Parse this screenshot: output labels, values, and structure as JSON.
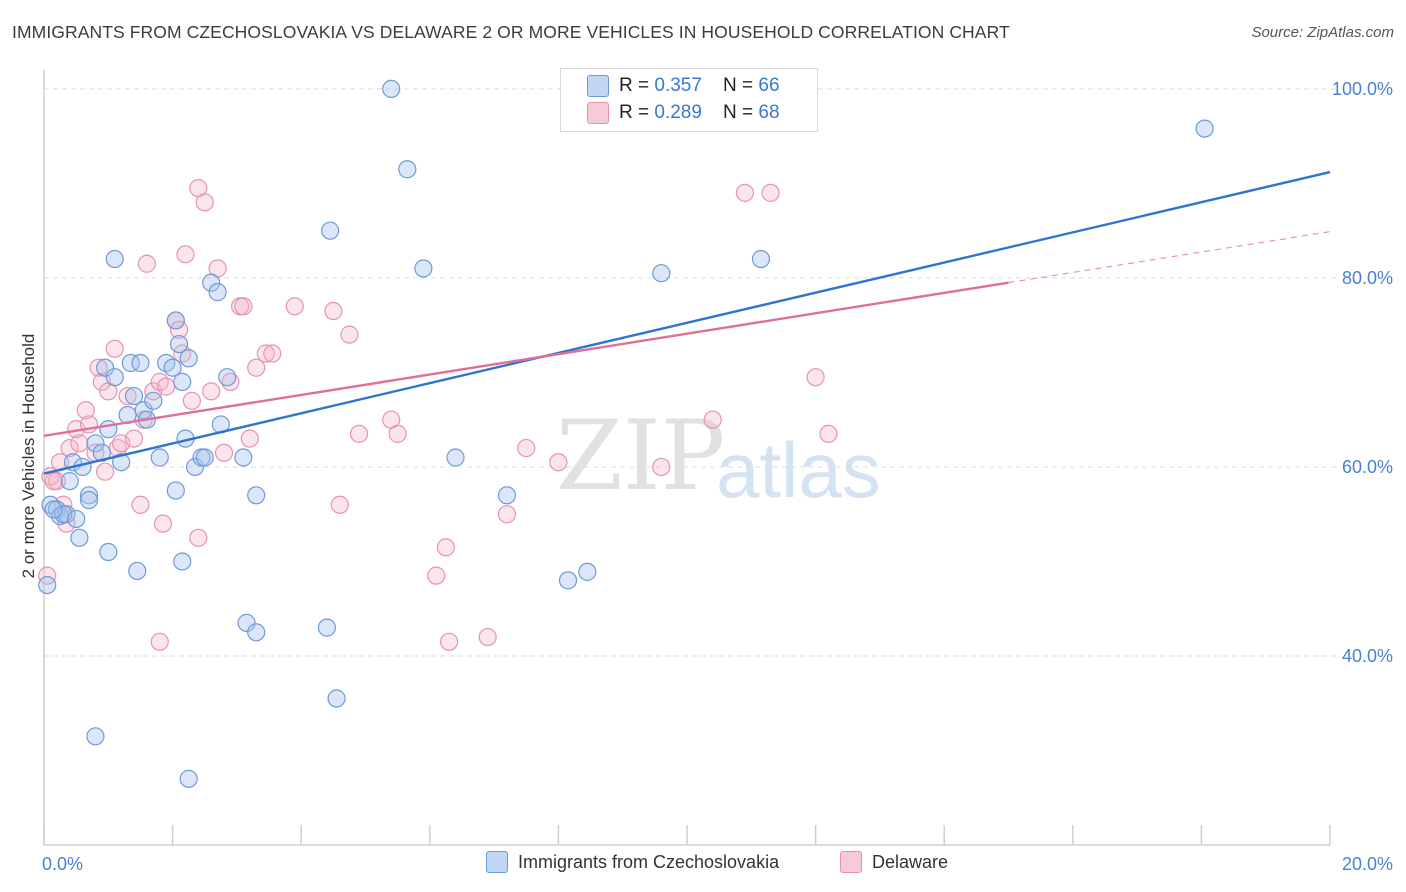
{
  "title": "IMMIGRANTS FROM CZECHOSLOVAKIA VS DELAWARE 2 OR MORE VEHICLES IN HOUSEHOLD CORRELATION CHART",
  "source": "Source: ZipAtlas.com",
  "watermark": {
    "zip": "ZIP",
    "atlas": "atlas"
  },
  "legend_top": [
    {
      "r_label": "R = ",
      "r_value": "0.357",
      "n_label": "N = ",
      "n_value": "66",
      "color": "#a6c4ee"
    },
    {
      "r_label": "R = ",
      "r_value": "0.289",
      "n_label": "N = ",
      "n_value": "68",
      "color": "#f4b4c8"
    }
  ],
  "legend_bottom": [
    {
      "label": "Immigrants from Czechoslovakia",
      "color": "#a6c4ee"
    },
    {
      "label": "Delaware",
      "color": "#f4b4c8"
    }
  ],
  "chart_data": {
    "type": "scatter",
    "title": "IMMIGRANTS FROM CZECHOSLOVAKIA VS DELAWARE 2 OR MORE VEHICLES IN HOUSEHOLD CORRELATION CHART",
    "xlabel": "",
    "ylabel": "2 or more Vehicles in Household",
    "xlim": [
      0,
      20
    ],
    "ylim": [
      20,
      102
    ],
    "x_ticks": [
      "0.0%",
      "20.0%"
    ],
    "y_ticks": [
      {
        "value": 40,
        "label": "40.0%"
      },
      {
        "value": 60,
        "label": "60.0%"
      },
      {
        "value": 80,
        "label": "80.0%"
      },
      {
        "value": 100,
        "label": "100.0%"
      }
    ],
    "grid": true,
    "legend_position": "top-center",
    "series": [
      {
        "name": "Immigrants from Czechoslovakia",
        "color": "#6f9ad6",
        "trend": {
          "x": [
            0,
            20
          ],
          "y": [
            59.3,
            91.2
          ],
          "color": "#2f74d0"
        },
        "points": [
          [
            0.05,
            47.5
          ],
          [
            0.1,
            56.0
          ],
          [
            0.2,
            55.5
          ],
          [
            0.25,
            54.8
          ],
          [
            0.35,
            55.0
          ],
          [
            0.55,
            52.5
          ],
          [
            0.4,
            58.5
          ],
          [
            0.45,
            60.5
          ],
          [
            0.6,
            60.0
          ],
          [
            0.7,
            57.0
          ],
          [
            0.8,
            62.5
          ],
          [
            0.9,
            61.5
          ],
          [
            0.95,
            70.5
          ],
          [
            1.0,
            64.0
          ],
          [
            1.1,
            69.5
          ],
          [
            1.2,
            60.5
          ],
          [
            1.3,
            65.5
          ],
          [
            1.35,
            71.0
          ],
          [
            1.4,
            67.5
          ],
          [
            1.5,
            71.0
          ],
          [
            1.55,
            66.0
          ],
          [
            1.6,
            65.0
          ],
          [
            1.7,
            67.0
          ],
          [
            1.8,
            61.0
          ],
          [
            1.9,
            71.0
          ],
          [
            2.0,
            70.5
          ],
          [
            2.05,
            75.5
          ],
          [
            2.1,
            73.0
          ],
          [
            2.15,
            69.0
          ],
          [
            2.2,
            63.0
          ],
          [
            2.25,
            71.5
          ],
          [
            2.35,
            60.0
          ],
          [
            2.45,
            61.0
          ],
          [
            2.5,
            61.0
          ],
          [
            2.6,
            79.5
          ],
          [
            2.7,
            78.5
          ],
          [
            2.75,
            64.5
          ],
          [
            2.85,
            69.5
          ],
          [
            3.1,
            61.0
          ],
          [
            3.3,
            57.0
          ],
          [
            0.7,
            56.5
          ],
          [
            1.0,
            51.0
          ],
          [
            1.45,
            49.0
          ],
          [
            2.15,
            50.0
          ],
          [
            2.05,
            57.5
          ],
          [
            1.1,
            82.0
          ],
          [
            3.15,
            43.5
          ],
          [
            3.3,
            42.5
          ],
          [
            4.4,
            43.0
          ],
          [
            4.55,
            35.5
          ],
          [
            4.45,
            85.0
          ],
          [
            5.4,
            100.0
          ],
          [
            5.65,
            91.5
          ],
          [
            5.9,
            81.0
          ],
          [
            6.4,
            61.0
          ],
          [
            7.2,
            57.0
          ],
          [
            8.15,
            48.0
          ],
          [
            8.45,
            48.9
          ],
          [
            9.6,
            80.5
          ],
          [
            11.15,
            82.0
          ],
          [
            18.05,
            95.8
          ],
          [
            0.8,
            31.5
          ],
          [
            2.25,
            27.0
          ],
          [
            0.3,
            55.0
          ],
          [
            0.15,
            55.5
          ],
          [
            0.5,
            54.5
          ]
        ]
      },
      {
        "name": "Delaware",
        "color": "#e793b0",
        "trend": {
          "x": [
            0,
            15
          ],
          "y": [
            63.3,
            79.5
          ],
          "color": "#e06f98"
        },
        "trend_dashed": {
          "x": [
            15,
            20
          ],
          "y": [
            79.5,
            84.9
          ]
        },
        "points": [
          [
            0.05,
            48.5
          ],
          [
            0.1,
            59.0
          ],
          [
            0.2,
            58.5
          ],
          [
            0.25,
            60.5
          ],
          [
            0.35,
            54.0
          ],
          [
            0.4,
            62.0
          ],
          [
            0.5,
            64.0
          ],
          [
            0.55,
            62.5
          ],
          [
            0.65,
            66.0
          ],
          [
            0.7,
            64.5
          ],
          [
            0.8,
            61.5
          ],
          [
            0.85,
            70.5
          ],
          [
            0.9,
            69.0
          ],
          [
            0.95,
            59.5
          ],
          [
            1.0,
            68.0
          ],
          [
            1.1,
            72.5
          ],
          [
            1.15,
            62.0
          ],
          [
            1.2,
            62.5
          ],
          [
            1.3,
            67.5
          ],
          [
            1.4,
            63.0
          ],
          [
            1.5,
            56.0
          ],
          [
            1.55,
            65.0
          ],
          [
            1.6,
            81.5
          ],
          [
            1.7,
            68.0
          ],
          [
            1.8,
            69.0
          ],
          [
            1.9,
            68.5
          ],
          [
            1.85,
            54.0
          ],
          [
            2.05,
            75.5
          ],
          [
            2.1,
            74.5
          ],
          [
            2.15,
            72.0
          ],
          [
            2.2,
            82.5
          ],
          [
            2.3,
            67.0
          ],
          [
            2.4,
            89.5
          ],
          [
            2.5,
            88.0
          ],
          [
            2.6,
            68.0
          ],
          [
            2.7,
            81.0
          ],
          [
            2.8,
            61.5
          ],
          [
            2.9,
            69.0
          ],
          [
            3.05,
            77.0
          ],
          [
            3.1,
            77.0
          ],
          [
            3.2,
            63.0
          ],
          [
            3.3,
            70.5
          ],
          [
            3.45,
            72.0
          ],
          [
            3.55,
            72.0
          ],
          [
            3.9,
            77.0
          ],
          [
            4.5,
            76.5
          ],
          [
            4.6,
            56.0
          ],
          [
            4.75,
            74.0
          ],
          [
            4.9,
            63.5
          ],
          [
            5.4,
            65.0
          ],
          [
            5.5,
            63.5
          ],
          [
            6.1,
            48.5
          ],
          [
            6.25,
            51.5
          ],
          [
            6.3,
            41.5
          ],
          [
            6.9,
            42.0
          ],
          [
            7.2,
            55.0
          ],
          [
            7.5,
            62.0
          ],
          [
            8.0,
            60.5
          ],
          [
            9.6,
            60.0
          ],
          [
            10.4,
            65.0
          ],
          [
            10.9,
            89.0
          ],
          [
            11.3,
            89.0
          ],
          [
            12.0,
            69.5
          ],
          [
            12.2,
            63.5
          ],
          [
            2.4,
            52.5
          ],
          [
            1.8,
            41.5
          ],
          [
            0.15,
            58.5
          ],
          [
            0.3,
            56.0
          ]
        ]
      }
    ]
  }
}
